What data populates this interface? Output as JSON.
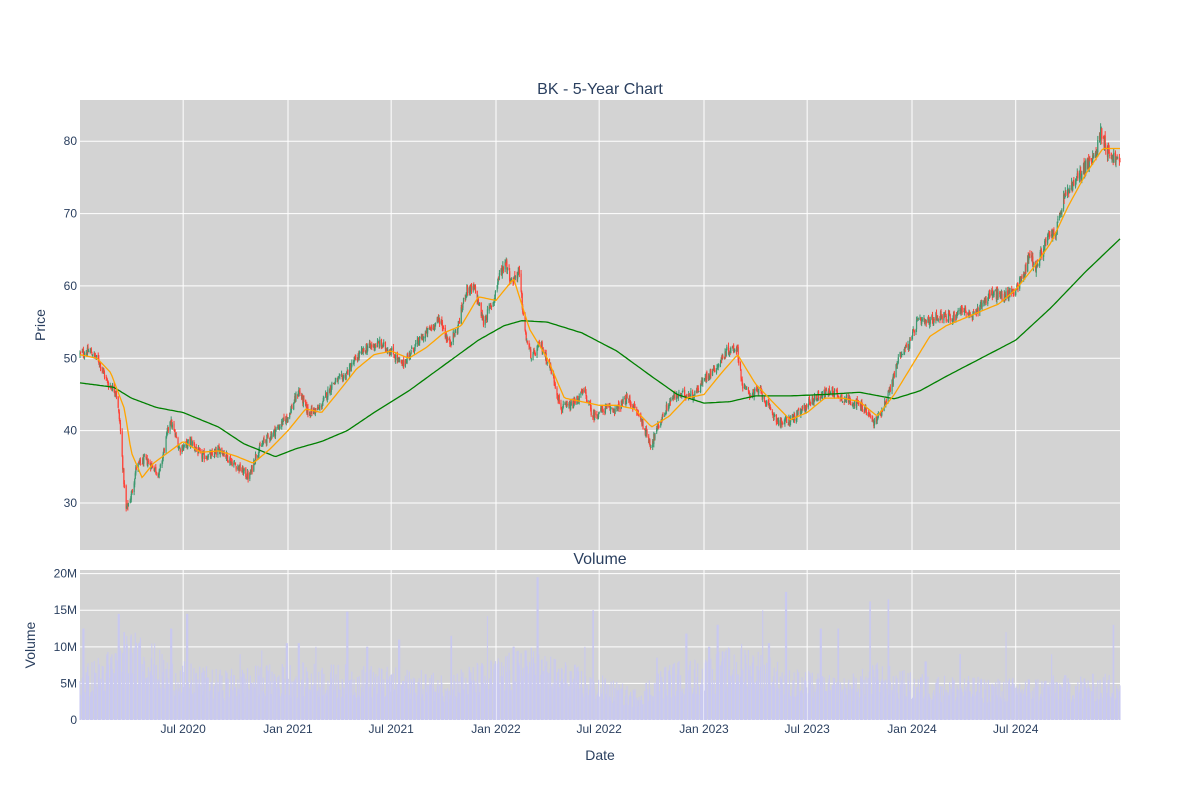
{
  "chart_data": [
    {
      "type": "candlestick",
      "title": "BK - 5-Year Chart",
      "ylabel": "Price",
      "ylim": [
        23.5,
        85.7
      ],
      "yticks": [
        30,
        40,
        50,
        60,
        70,
        80
      ],
      "grid": true,
      "x_range": [
        "2020-01-02",
        "2024-12-31"
      ],
      "x_ticks": [
        {
          "date": "2020-07-01",
          "label": "Jul 2020"
        },
        {
          "date": "2021-01-01",
          "label": "Jan 2021"
        },
        {
          "date": "2021-07-01",
          "label": "Jul 2021"
        },
        {
          "date": "2022-01-01",
          "label": "Jan 2022"
        },
        {
          "date": "2022-07-01",
          "label": "Jul 2022"
        },
        {
          "date": "2023-01-01",
          "label": "Jan 2023"
        },
        {
          "date": "2023-07-01",
          "label": "Jul 2023"
        },
        {
          "date": "2024-01-01",
          "label": "Jan 2024"
        },
        {
          "date": "2024-07-01",
          "label": "Jul 2024"
        }
      ],
      "colors": {
        "increasing": "#3d9970",
        "decreasing": "#ff4136",
        "ma_short": "#ffa500",
        "ma_long": "#008000",
        "plot_bg": "#d3d3d3"
      },
      "close_series": [
        [
          "2020-01-02",
          50.6
        ],
        [
          "2020-01-20",
          51.0
        ],
        [
          "2020-02-05",
          49.5
        ],
        [
          "2020-02-20",
          46.5
        ],
        [
          "2020-03-05",
          45.5
        ],
        [
          "2020-03-12",
          41.0
        ],
        [
          "2020-03-18",
          34.0
        ],
        [
          "2020-03-23",
          29.0
        ],
        [
          "2020-04-01",
          31.0
        ],
        [
          "2020-04-10",
          35.0
        ],
        [
          "2020-04-25",
          36.0
        ],
        [
          "2020-05-10",
          35.0
        ],
        [
          "2020-05-20",
          34.0
        ],
        [
          "2020-06-08",
          41.5
        ],
        [
          "2020-06-25",
          37.5
        ],
        [
          "2020-07-15",
          38.5
        ],
        [
          "2020-08-01",
          36.5
        ],
        [
          "2020-08-20",
          36.5
        ],
        [
          "2020-09-05",
          37.5
        ],
        [
          "2020-09-20",
          36.0
        ],
        [
          "2020-10-05",
          35.0
        ],
        [
          "2020-10-25",
          33.5
        ],
        [
          "2020-11-05",
          36.5
        ],
        [
          "2020-11-20",
          38.5
        ],
        [
          "2020-12-10",
          40.0
        ],
        [
          "2021-01-01",
          42.0
        ],
        [
          "2021-01-20",
          45.5
        ],
        [
          "2021-02-05",
          42.5
        ],
        [
          "2021-02-25",
          43.0
        ],
        [
          "2021-03-20",
          46.5
        ],
        [
          "2021-04-10",
          47.5
        ],
        [
          "2021-05-01",
          50.0
        ],
        [
          "2021-05-20",
          51.5
        ],
        [
          "2021-06-10",
          52.0
        ],
        [
          "2021-07-01",
          51.0
        ],
        [
          "2021-07-20",
          49.0
        ],
        [
          "2021-08-10",
          51.5
        ],
        [
          "2021-09-01",
          53.5
        ],
        [
          "2021-09-25",
          55.5
        ],
        [
          "2021-10-10",
          52.0
        ],
        [
          "2021-10-25",
          54.0
        ],
        [
          "2021-11-10",
          59.5
        ],
        [
          "2021-11-25",
          59.5
        ],
        [
          "2021-12-10",
          55.0
        ],
        [
          "2021-12-28",
          58.0
        ],
        [
          "2022-01-05",
          61.0
        ],
        [
          "2022-01-18",
          63.5
        ],
        [
          "2022-01-28",
          60.5
        ],
        [
          "2022-02-10",
          62.0
        ],
        [
          "2022-02-22",
          53.0
        ],
        [
          "2022-03-05",
          50.0
        ],
        [
          "2022-03-20",
          52.0
        ],
        [
          "2022-04-10",
          48.0
        ],
        [
          "2022-04-25",
          43.0
        ],
        [
          "2022-05-15",
          43.5
        ],
        [
          "2022-06-05",
          45.5
        ],
        [
          "2022-06-20",
          42.0
        ],
        [
          "2022-07-10",
          43.0
        ],
        [
          "2022-08-01",
          43.0
        ],
        [
          "2022-08-20",
          44.5
        ],
        [
          "2022-09-10",
          42.0
        ],
        [
          "2022-09-30",
          38.0
        ],
        [
          "2022-10-15",
          41.0
        ],
        [
          "2022-11-05",
          44.5
        ],
        [
          "2022-11-25",
          45.0
        ],
        [
          "2022-12-15",
          45.0
        ],
        [
          "2023-01-05",
          47.5
        ],
        [
          "2023-01-25",
          49.0
        ],
        [
          "2023-02-10",
          51.0
        ],
        [
          "2023-02-28",
          51.5
        ],
        [
          "2023-03-10",
          46.0
        ],
        [
          "2023-03-25",
          45.0
        ],
        [
          "2023-04-10",
          45.5
        ],
        [
          "2023-04-25",
          43.0
        ],
        [
          "2023-05-15",
          41.0
        ],
        [
          "2023-06-01",
          41.5
        ],
        [
          "2023-06-20",
          42.5
        ],
        [
          "2023-07-05",
          44.0
        ],
        [
          "2023-07-25",
          45.0
        ],
        [
          "2023-08-15",
          45.5
        ],
        [
          "2023-09-01",
          44.5
        ],
        [
          "2023-09-20",
          44.0
        ],
        [
          "2023-10-10",
          43.0
        ],
        [
          "2023-10-27",
          41.0
        ],
        [
          "2023-11-10",
          43.0
        ],
        [
          "2023-11-25",
          46.0
        ],
        [
          "2023-12-10",
          50.5
        ],
        [
          "2023-12-28",
          52.0
        ],
        [
          "2024-01-10",
          55.0
        ],
        [
          "2024-01-30",
          55.0
        ],
        [
          "2024-02-20",
          56.0
        ],
        [
          "2024-03-10",
          55.5
        ],
        [
          "2024-03-30",
          57.0
        ],
        [
          "2024-04-15",
          55.5
        ],
        [
          "2024-05-01",
          57.5
        ],
        [
          "2024-05-20",
          59.0
        ],
        [
          "2024-06-10",
          58.5
        ],
        [
          "2024-06-30",
          59.5
        ],
        [
          "2024-07-15",
          61.5
        ],
        [
          "2024-07-25",
          64.5
        ],
        [
          "2024-08-05",
          62.5
        ],
        [
          "2024-08-25",
          66.5
        ],
        [
          "2024-09-10",
          67.5
        ],
        [
          "2024-09-25",
          72.5
        ],
        [
          "2024-10-15",
          74.5
        ],
        [
          "2024-10-30",
          76.5
        ],
        [
          "2024-11-15",
          77.5
        ],
        [
          "2024-11-28",
          81.5
        ],
        [
          "2024-12-10",
          78.5
        ],
        [
          "2024-12-31",
          77.0
        ]
      ],
      "moving_average_long": [
        [
          "2020-01-02",
          46.6
        ],
        [
          "2020-03-01",
          46.0
        ],
        [
          "2020-04-01",
          44.5
        ],
        [
          "2020-05-15",
          43.2
        ],
        [
          "2020-07-01",
          42.5
        ],
        [
          "2020-09-01",
          40.5
        ],
        [
          "2020-10-15",
          38.2
        ],
        [
          "2020-12-10",
          36.4
        ],
        [
          "2021-01-15",
          37.5
        ],
        [
          "2021-03-01",
          38.5
        ],
        [
          "2021-04-15",
          40.0
        ],
        [
          "2021-06-01",
          42.5
        ],
        [
          "2021-08-01",
          45.5
        ],
        [
          "2021-10-01",
          49.0
        ],
        [
          "2021-12-01",
          52.5
        ],
        [
          "2022-01-15",
          54.5
        ],
        [
          "2022-02-15",
          55.2
        ],
        [
          "2022-04-01",
          55.0
        ],
        [
          "2022-06-01",
          53.5
        ],
        [
          "2022-08-01",
          51.0
        ],
        [
          "2022-10-01",
          47.5
        ],
        [
          "2022-11-15",
          45.0
        ],
        [
          "2023-01-01",
          43.8
        ],
        [
          "2023-02-15",
          44.0
        ],
        [
          "2023-04-01",
          44.8
        ],
        [
          "2023-06-01",
          44.8
        ],
        [
          "2023-08-01",
          45.0
        ],
        [
          "2023-10-01",
          45.3
        ],
        [
          "2023-12-01",
          44.4
        ],
        [
          "2024-01-15",
          45.5
        ],
        [
          "2024-03-01",
          47.5
        ],
        [
          "2024-05-01",
          50.0
        ],
        [
          "2024-07-01",
          52.5
        ],
        [
          "2024-09-01",
          57.0
        ],
        [
          "2024-11-01",
          62.0
        ],
        [
          "2024-12-31",
          66.5
        ]
      ],
      "moving_average_short": [
        [
          "2020-01-02",
          50.5
        ],
        [
          "2020-02-01",
          50.0
        ],
        [
          "2020-02-25",
          48.0
        ],
        [
          "2020-03-20",
          43.0
        ],
        [
          "2020-04-01",
          37.0
        ],
        [
          "2020-04-20",
          33.5
        ],
        [
          "2020-05-10",
          35.5
        ],
        [
          "2020-06-05",
          37.0
        ],
        [
          "2020-07-01",
          38.5
        ],
        [
          "2020-08-01",
          37.0
        ],
        [
          "2020-09-01",
          37.2
        ],
        [
          "2020-10-01",
          36.5
        ],
        [
          "2020-11-01",
          35.5
        ],
        [
          "2020-12-01",
          37.5
        ],
        [
          "2021-01-01",
          40.0
        ],
        [
          "2021-02-01",
          43.0
        ],
        [
          "2021-03-01",
          42.5
        ],
        [
          "2021-04-01",
          45.5
        ],
        [
          "2021-05-01",
          48.5
        ],
        [
          "2021-06-01",
          50.5
        ],
        [
          "2021-07-01",
          51.0
        ],
        [
          "2021-08-01",
          50.0
        ],
        [
          "2021-09-01",
          51.5
        ],
        [
          "2021-10-01",
          53.5
        ],
        [
          "2021-11-01",
          54.5
        ],
        [
          "2021-12-01",
          58.5
        ],
        [
          "2022-01-01",
          58.0
        ],
        [
          "2022-02-01",
          61.0
        ],
        [
          "2022-03-01",
          54.0
        ],
        [
          "2022-04-01",
          50.0
        ],
        [
          "2022-05-01",
          44.5
        ],
        [
          "2022-06-01",
          44.0
        ],
        [
          "2022-07-01",
          43.5
        ],
        [
          "2022-08-01",
          43.5
        ],
        [
          "2022-09-01",
          43.0
        ],
        [
          "2022-10-01",
          40.5
        ],
        [
          "2022-11-01",
          42.0
        ],
        [
          "2022-12-01",
          44.5
        ],
        [
          "2023-01-01",
          45.0
        ],
        [
          "2023-02-01",
          48.0
        ],
        [
          "2023-03-01",
          50.5
        ],
        [
          "2023-04-01",
          46.5
        ],
        [
          "2023-05-01",
          44.0
        ],
        [
          "2023-06-01",
          41.5
        ],
        [
          "2023-07-01",
          42.5
        ],
        [
          "2023-08-01",
          44.5
        ],
        [
          "2023-09-01",
          44.5
        ],
        [
          "2023-10-01",
          44.0
        ],
        [
          "2023-11-01",
          42.0
        ],
        [
          "2023-12-01",
          45.0
        ],
        [
          "2024-01-01",
          49.0
        ],
        [
          "2024-02-01",
          53.0
        ],
        [
          "2024-03-01",
          54.5
        ],
        [
          "2024-04-01",
          55.5
        ],
        [
          "2024-05-01",
          56.5
        ],
        [
          "2024-06-01",
          57.5
        ],
        [
          "2024-07-01",
          59.5
        ],
        [
          "2024-08-01",
          62.5
        ],
        [
          "2024-09-01",
          66.0
        ],
        [
          "2024-10-01",
          71.0
        ],
        [
          "2024-11-01",
          75.5
        ],
        [
          "2024-12-01",
          79.0
        ],
        [
          "2024-12-31",
          79.0
        ]
      ]
    },
    {
      "type": "bar",
      "title": "Volume",
      "xlabel": "Date",
      "ylabel": "Volume",
      "ylim": [
        0,
        20500000
      ],
      "yticks": [
        {
          "value": 0,
          "label": "0"
        },
        {
          "value": 5000000,
          "label": "5M"
        },
        {
          "value": 10000000,
          "label": "10M"
        },
        {
          "value": 15000000,
          "label": "15M"
        },
        {
          "value": 20000000,
          "label": "20M"
        }
      ],
      "bar_color": "#c8c8f0",
      "grid": true,
      "base_volume_level": [
        [
          "2020-01-02",
          5000000
        ],
        [
          "2020-03-01",
          7000000
        ],
        [
          "2020-04-15",
          9000000
        ],
        [
          "2020-06-01",
          6000000
        ],
        [
          "2020-09-01",
          4800000
        ],
        [
          "2021-01-01",
          5500000
        ],
        [
          "2021-06-01",
          5200000
        ],
        [
          "2021-10-01",
          4500000
        ],
        [
          "2022-01-01",
          6000000
        ],
        [
          "2022-03-01",
          7000000
        ],
        [
          "2022-06-01",
          5000000
        ],
        [
          "2022-09-01",
          3000000
        ],
        [
          "2022-11-01",
          5500000
        ],
        [
          "2023-01-01",
          6000000
        ],
        [
          "2023-03-15",
          7500000
        ],
        [
          "2023-06-01",
          5000000
        ],
        [
          "2023-09-01",
          4000000
        ],
        [
          "2023-11-01",
          5500000
        ],
        [
          "2024-01-01",
          4500000
        ],
        [
          "2024-06-01",
          4000000
        ],
        [
          "2024-12-31",
          4500000
        ]
      ],
      "volume_spikes": [
        [
          "2020-01-08",
          12500000
        ],
        [
          "2020-03-10",
          14500000
        ],
        [
          "2020-03-20",
          12000000
        ],
        [
          "2020-04-15",
          10500000
        ],
        [
          "2020-06-10",
          12500000
        ],
        [
          "2020-07-08",
          14500000
        ],
        [
          "2020-10-10",
          9000000
        ],
        [
          "2020-11-15",
          9500000
        ],
        [
          "2020-12-30",
          10500000
        ],
        [
          "2021-01-20",
          10500000
        ],
        [
          "2021-02-20",
          10000000
        ],
        [
          "2021-04-15",
          14800000
        ],
        [
          "2021-05-20",
          10000000
        ],
        [
          "2021-07-15",
          11000000
        ],
        [
          "2021-10-15",
          11500000
        ],
        [
          "2021-12-18",
          14200000
        ],
        [
          "2022-02-01",
          10000000
        ],
        [
          "2022-02-22",
          9500000
        ],
        [
          "2022-03-15",
          19500000
        ],
        [
          "2022-06-05",
          10000000
        ],
        [
          "2022-06-20",
          15000000
        ],
        [
          "2022-10-10",
          8500000
        ],
        [
          "2022-12-01",
          11800000
        ],
        [
          "2023-01-10",
          10000000
        ],
        [
          "2023-01-25",
          13000000
        ],
        [
          "2023-04-15",
          15000000
        ],
        [
          "2023-04-25",
          10500000
        ],
        [
          "2023-05-25",
          17500000
        ],
        [
          "2023-07-25",
          12500000
        ],
        [
          "2023-08-25",
          12500000
        ],
        [
          "2023-10-20",
          16200000
        ],
        [
          "2023-11-20",
          16500000
        ],
        [
          "2024-01-25",
          8000000
        ],
        [
          "2024-03-25",
          9000000
        ],
        [
          "2024-06-15",
          12000000
        ],
        [
          "2024-09-01",
          9000000
        ],
        [
          "2024-12-20",
          13000000
        ]
      ]
    }
  ]
}
